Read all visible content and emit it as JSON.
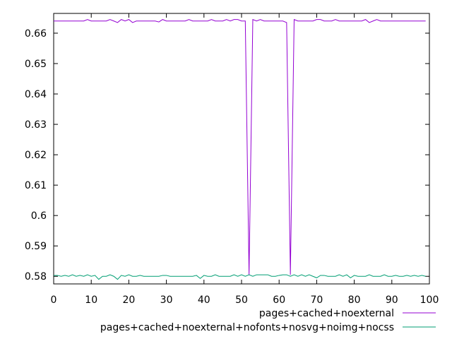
{
  "chart_data": {
    "type": "line",
    "title": "",
    "xlabel": "",
    "ylabel": "",
    "xlim": [
      0,
      100
    ],
    "ylim": [
      0.5775,
      0.6665
    ],
    "x_ticks": [
      0,
      10,
      20,
      30,
      40,
      50,
      60,
      70,
      80,
      90,
      100
    ],
    "y_ticks": [
      0.58,
      0.59,
      0.6,
      0.61,
      0.62,
      0.63,
      0.64,
      0.65,
      0.66
    ],
    "x_tick_labels": [
      "0",
      "10",
      "20",
      "30",
      "40",
      "50",
      "60",
      "70",
      "80",
      "90",
      "100"
    ],
    "y_tick_labels": [
      "0.58",
      "0.59",
      "0.6",
      "0.61",
      "0.62",
      "0.63",
      "0.64",
      "0.65",
      "0.66"
    ],
    "grid": false,
    "legend_position": "bottom-right, outside plot",
    "x": [
      0,
      1,
      2,
      3,
      4,
      5,
      6,
      7,
      8,
      9,
      10,
      11,
      12,
      13,
      14,
      15,
      16,
      17,
      18,
      19,
      20,
      21,
      22,
      23,
      24,
      25,
      26,
      27,
      28,
      29,
      30,
      31,
      32,
      33,
      34,
      35,
      36,
      37,
      38,
      39,
      40,
      41,
      42,
      43,
      44,
      45,
      46,
      47,
      48,
      49,
      50,
      51,
      52,
      53,
      54,
      55,
      56,
      57,
      58,
      59,
      60,
      61,
      62,
      63,
      64,
      65,
      66,
      67,
      68,
      69,
      70,
      71,
      72,
      73,
      74,
      75,
      76,
      77,
      78,
      79,
      80,
      81,
      82,
      83,
      84,
      85,
      86,
      87,
      88,
      89,
      90,
      91,
      92,
      93,
      94,
      95,
      96,
      97,
      98,
      99
    ],
    "series": [
      {
        "name": "pages+cached+noexternal",
        "color": "#9400d3",
        "values": [
          0.664,
          0.664,
          0.664,
          0.664,
          0.664,
          0.664,
          0.664,
          0.664,
          0.664,
          0.6645,
          0.664,
          0.664,
          0.664,
          0.664,
          0.664,
          0.6645,
          0.664,
          0.6635,
          0.6645,
          0.664,
          0.6645,
          0.6635,
          0.664,
          0.664,
          0.664,
          0.664,
          0.664,
          0.664,
          0.6637,
          0.6645,
          0.664,
          0.664,
          0.664,
          0.664,
          0.664,
          0.664,
          0.6645,
          0.664,
          0.664,
          0.664,
          0.664,
          0.664,
          0.6645,
          0.664,
          0.664,
          0.664,
          0.6645,
          0.664,
          0.6645,
          0.6645,
          0.664,
          0.664,
          0.5805,
          0.6645,
          0.664,
          0.6645,
          0.664,
          0.664,
          0.664,
          0.664,
          0.664,
          0.664,
          0.6635,
          0.5805,
          0.6645,
          0.664,
          0.664,
          0.664,
          0.664,
          0.664,
          0.6645,
          0.6645,
          0.664,
          0.664,
          0.664,
          0.6645,
          0.664,
          0.664,
          0.664,
          0.664,
          0.664,
          0.664,
          0.664,
          0.6645,
          0.6635,
          0.664,
          0.6645,
          0.664,
          0.664,
          0.664,
          0.664,
          0.664,
          0.664,
          0.664,
          0.664,
          0.664,
          0.664,
          0.664,
          0.664,
          0.664
        ]
      },
      {
        "name": "pages+cached+noexternal+nofonts+nosvg+noimg+nocss",
        "color": "#009e73",
        "values": [
          0.5803,
          0.5803,
          0.58,
          0.5803,
          0.58,
          0.5805,
          0.58,
          0.5803,
          0.58,
          0.5805,
          0.58,
          0.5803,
          0.579,
          0.58,
          0.58,
          0.5805,
          0.58,
          0.579,
          0.5803,
          0.58,
          0.5805,
          0.58,
          0.58,
          0.5803,
          0.58,
          0.58,
          0.58,
          0.58,
          0.58,
          0.5803,
          0.5803,
          0.58,
          0.58,
          0.58,
          0.58,
          0.58,
          0.58,
          0.58,
          0.5803,
          0.5793,
          0.5803,
          0.58,
          0.58,
          0.5805,
          0.58,
          0.58,
          0.58,
          0.58,
          0.5805,
          0.58,
          0.5805,
          0.58,
          0.5805,
          0.58,
          0.5805,
          0.5805,
          0.5805,
          0.5805,
          0.58,
          0.58,
          0.5803,
          0.5805,
          0.5805,
          0.58,
          0.5805,
          0.58,
          0.5805,
          0.58,
          0.5805,
          0.58,
          0.5795,
          0.5803,
          0.5803,
          0.58,
          0.58,
          0.58,
          0.5805,
          0.58,
          0.5805,
          0.5795,
          0.5803,
          0.58,
          0.58,
          0.58,
          0.5805,
          0.58,
          0.58,
          0.58,
          0.5805,
          0.58,
          0.58,
          0.5803,
          0.58,
          0.58,
          0.5803,
          0.58,
          0.5803,
          0.58,
          0.5803,
          0.58
        ]
      }
    ]
  }
}
